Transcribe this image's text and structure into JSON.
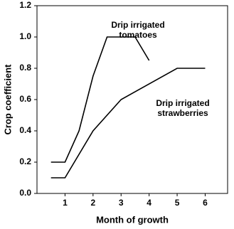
{
  "chart_data": {
    "type": "line",
    "x_label": "Month of growth",
    "y_label": "Crop coefficient",
    "xlim": [
      0,
      6.8
    ],
    "ylim": [
      0,
      1.2
    ],
    "xticks": [
      1,
      2,
      3,
      4,
      5,
      6
    ],
    "yticks": [
      {
        "value": 0,
        "label": "0.0"
      },
      {
        "value": 0.2,
        "label": "0.2"
      },
      {
        "value": 0.4,
        "label": "0.4"
      },
      {
        "value": 0.6,
        "label": "0.6"
      },
      {
        "value": 0.8,
        "label": "0.8"
      },
      {
        "value": 1.0,
        "label": "1.0"
      },
      {
        "value": 1.2,
        "label": "1.2"
      }
    ],
    "series": [
      {
        "color": "#000000",
        "x": [
          0.5,
          1,
          1.5,
          2,
          2.5,
          3,
          3.5,
          4
        ],
        "values": [
          0.2,
          0.2,
          0.4,
          0.75,
          1.0,
          1.0,
          1.0,
          0.85
        ]
      },
      {
        "color": "#000000",
        "x": [
          0.5,
          1,
          2,
          3,
          5,
          6
        ],
        "values": [
          0.1,
          0.1,
          0.4,
          0.6,
          0.8,
          0.8
        ]
      }
    ],
    "annotations": [
      {
        "lines": [
          "Drip irrigated",
          "tomatoes"
        ]
      },
      {
        "lines": [
          "Drip irrigated",
          "strawberries"
        ]
      }
    ]
  }
}
